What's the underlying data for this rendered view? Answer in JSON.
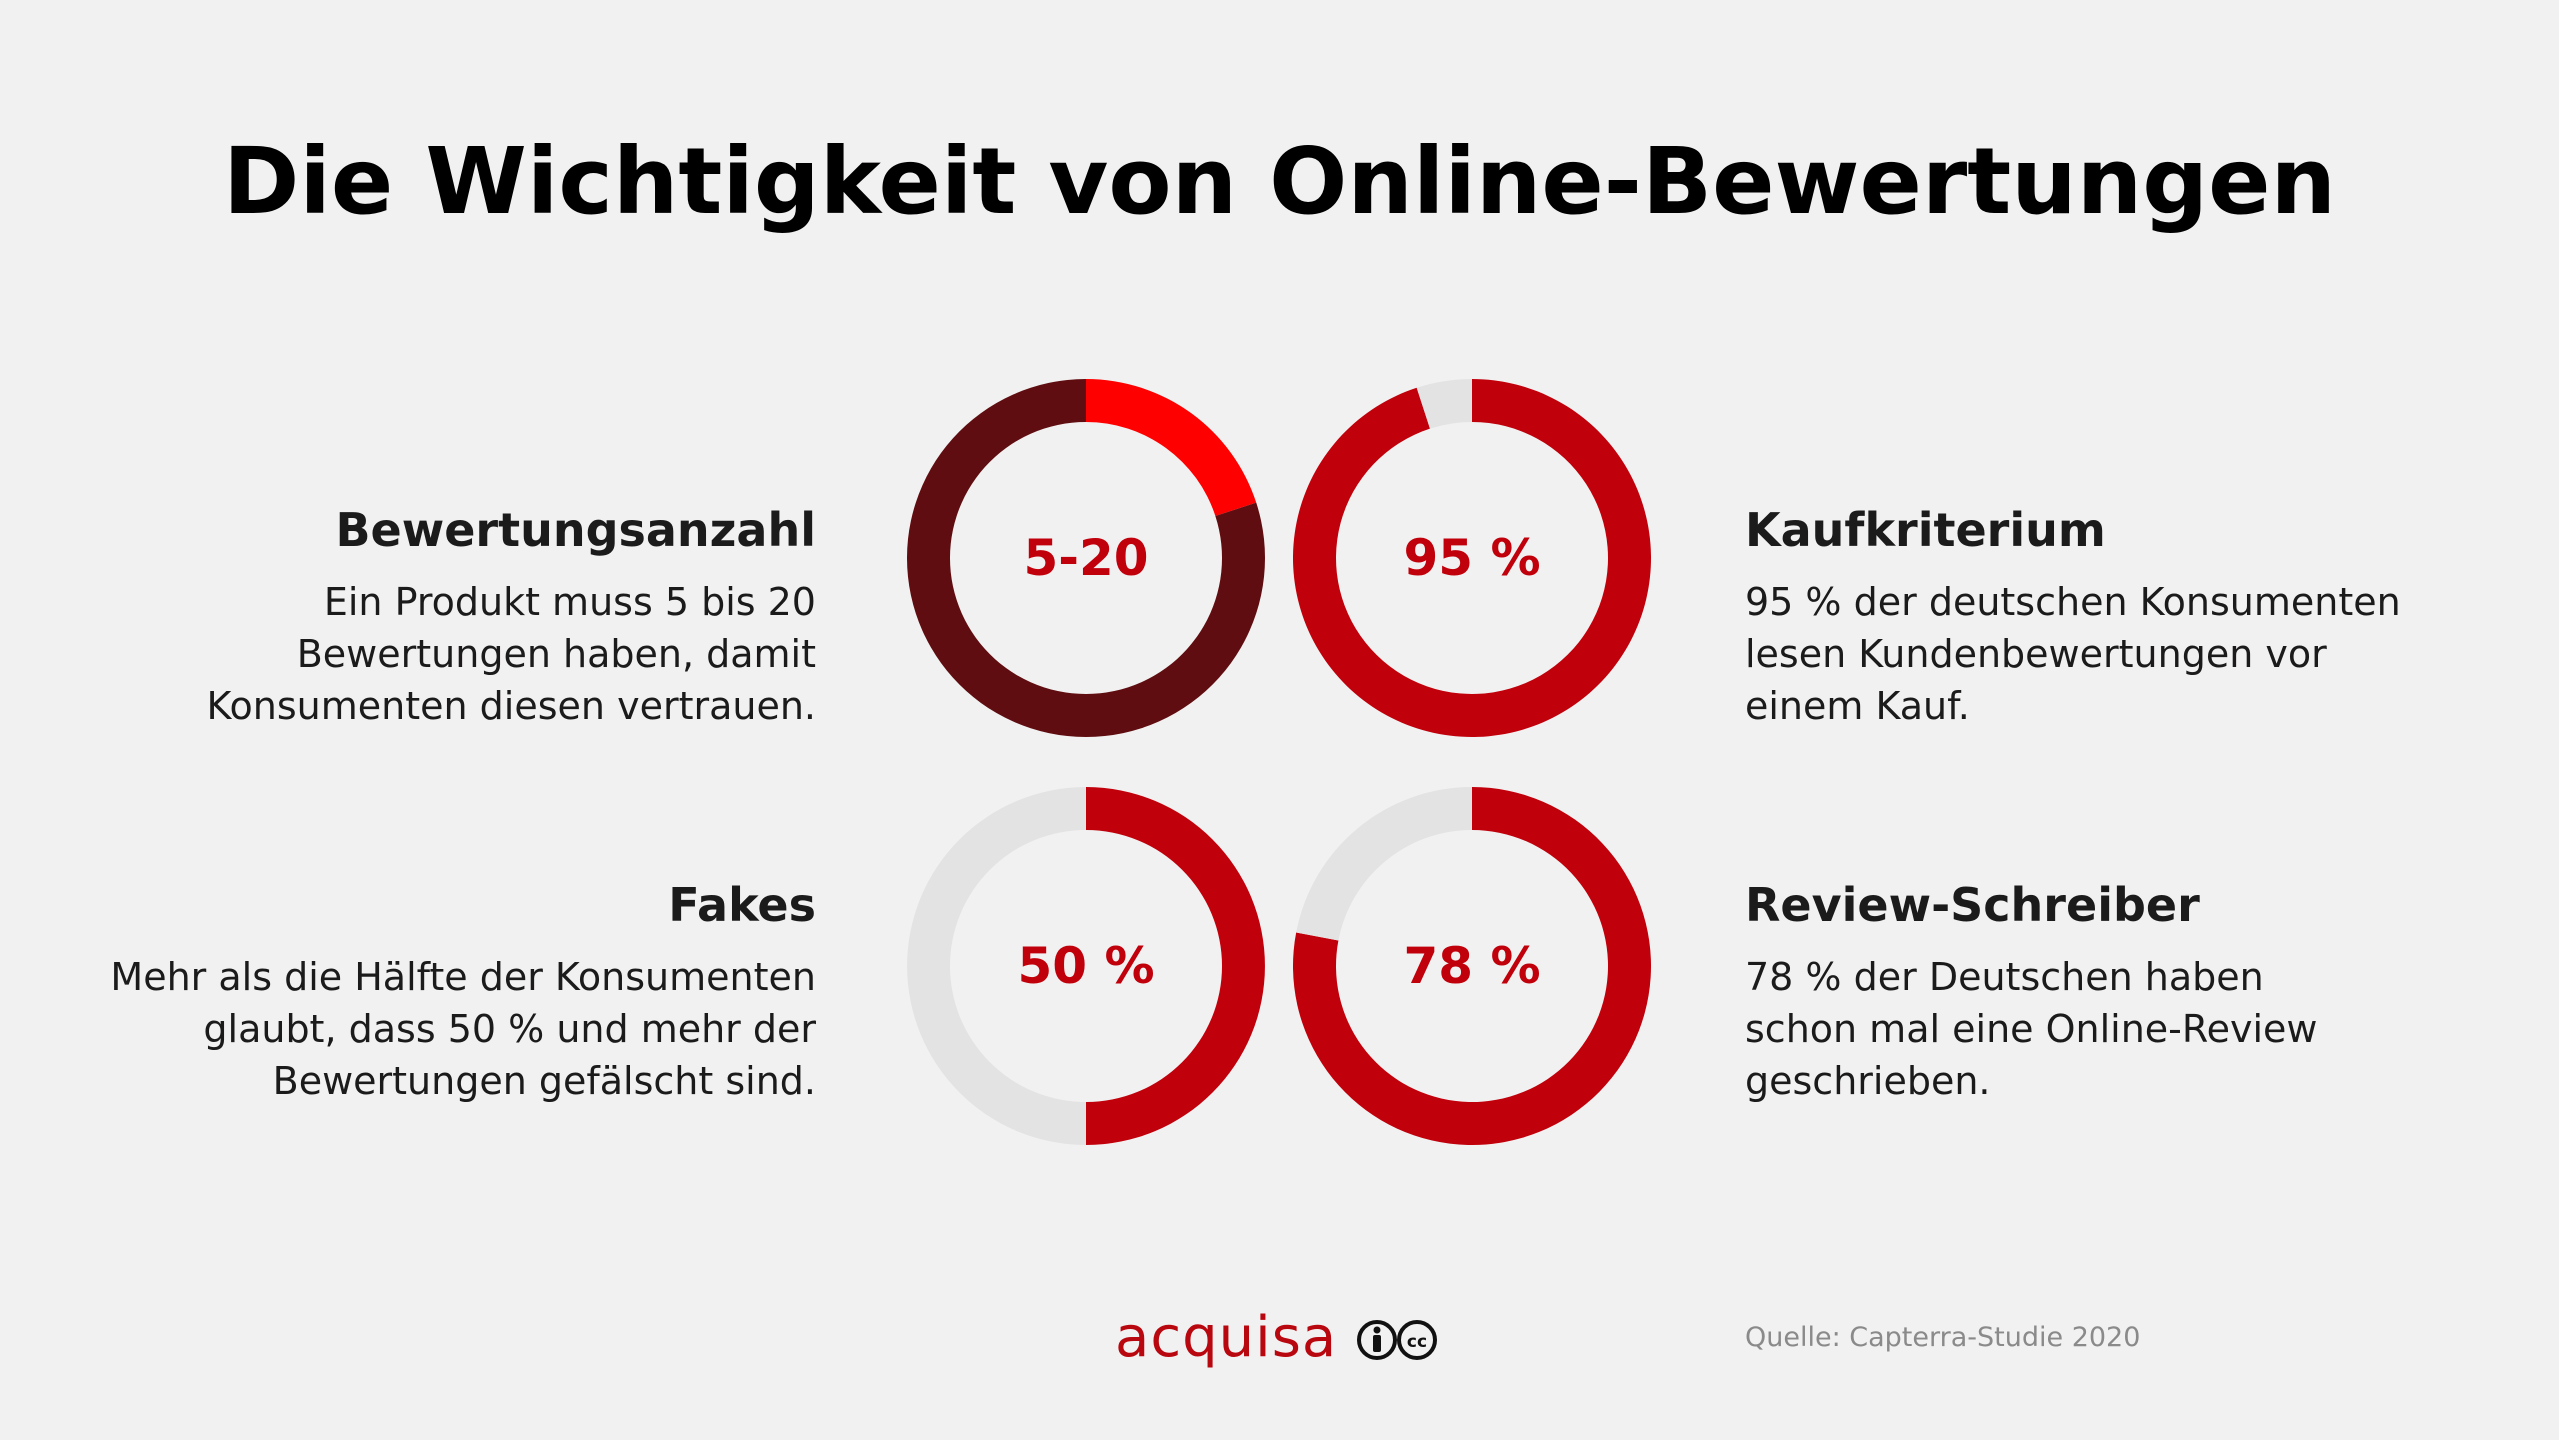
{
  "title": "Die Wichtigkeit von Online-Bewertungen",
  "colors": {
    "background": "#f2f1f1",
    "red": "#c0000b",
    "bright_red": "#ff0000",
    "dark_red": "#5f0d10",
    "grey_track": "#e3e3e3"
  },
  "blocks": {
    "bewertungsanzahl": {
      "heading": "Bewertungsanzahl",
      "lines": [
        "Ein Produkt muss 5 bis 20",
        "Bewertungen haben, damit",
        "Konsumenten diesen vertrauen."
      ]
    },
    "kaufkriterium": {
      "heading": "Kaufkriterium",
      "lines": [
        "95 % der deutschen Konsumenten",
        "lesen Kundenbewertungen vor",
        "einem Kauf."
      ]
    },
    "fakes": {
      "heading": "Fakes",
      "lines": [
        "Mehr als die Hälfte der Konsumenten",
        "glaubt, dass 50 % und mehr der",
        "Bewertungen gefälscht sind."
      ]
    },
    "review_schreiber": {
      "heading": "Review-Schreiber",
      "lines": [
        "78 % der Deutschen haben",
        "schon mal eine Online-Review",
        "geschrieben."
      ]
    }
  },
  "chart_data": [
    {
      "type": "pie",
      "label": "5-20",
      "values": [
        20,
        80
      ],
      "colors": [
        "#ff0000",
        "#5f0d10"
      ]
    },
    {
      "type": "pie",
      "label": "95 %",
      "values": [
        95,
        5
      ],
      "colors": [
        "#c0000b",
        "#e3e3e3"
      ]
    },
    {
      "type": "pie",
      "label": "50 %",
      "values": [
        50,
        50
      ],
      "colors": [
        "#c0000b",
        "#e3e3e3"
      ]
    },
    {
      "type": "pie",
      "label": "78 %",
      "values": [
        78,
        22
      ],
      "colors": [
        "#c0000b",
        "#e3e3e3"
      ]
    }
  ],
  "footer": {
    "brand": "acquisa",
    "license_icon": "creative-commons-by-icon",
    "source": "Quelle: Capterra-Studie 2020"
  }
}
